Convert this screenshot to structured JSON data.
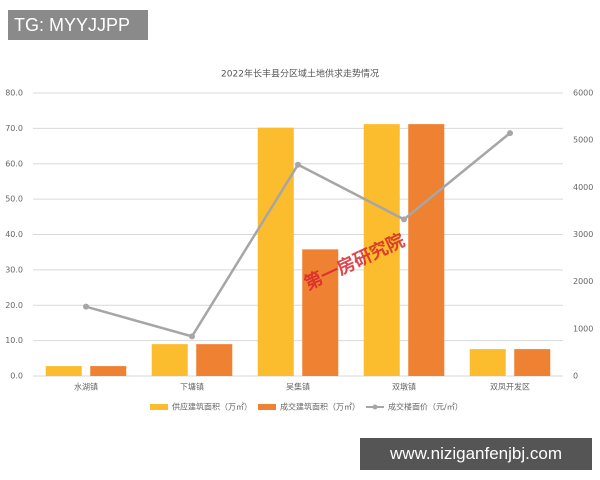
{
  "chart_data": {
    "type": "bar",
    "title": "2022年长丰县分区域土地供求走势情况",
    "categories": [
      "水湖镇",
      "下塘镇",
      "吴集镇",
      "双墩镇",
      "双凤开发区"
    ],
    "series": [
      {
        "name": "供应建筑面积（万㎡）",
        "color": "#fbbc2d",
        "type": "bar",
        "values": [
          2.8,
          9.0,
          70.2,
          71.2,
          7.6
        ]
      },
      {
        "name": "成交建筑面积（万㎡）",
        "color": "#ee8132",
        "type": "bar",
        "values": [
          2.8,
          9.0,
          35.8,
          71.2,
          7.6
        ]
      },
      {
        "name": "成交楼面价（元/㎡）",
        "color": "#a6a6a6",
        "type": "line",
        "axis": "y2",
        "values": [
          1470,
          840,
          4480,
          3320,
          5150
        ]
      }
    ],
    "ylim": [
      0,
      80
    ],
    "yticks": [
      {
        "value": 0,
        "label": "0.0"
      },
      {
        "value": 10,
        "label": "10.0"
      },
      {
        "value": 20,
        "label": "20.0"
      },
      {
        "value": 30,
        "label": "30.0"
      },
      {
        "value": 40,
        "label": "40.0"
      },
      {
        "value": 50,
        "label": "50.0"
      },
      {
        "value": 60,
        "label": "60.0"
      },
      {
        "value": 70,
        "label": "70.0"
      },
      {
        "value": 80,
        "label": "80.0"
      }
    ],
    "y2lim": [
      0,
      6000
    ],
    "y2ticks": [
      0,
      1000,
      2000,
      3000,
      4000,
      5000,
      6000
    ],
    "grid": true,
    "legend": "bottom"
  },
  "overlays": {
    "tag": "TG: MYYJJPP",
    "watermark": "第一房研究院",
    "site": "www.niziganfenjbj.com"
  }
}
